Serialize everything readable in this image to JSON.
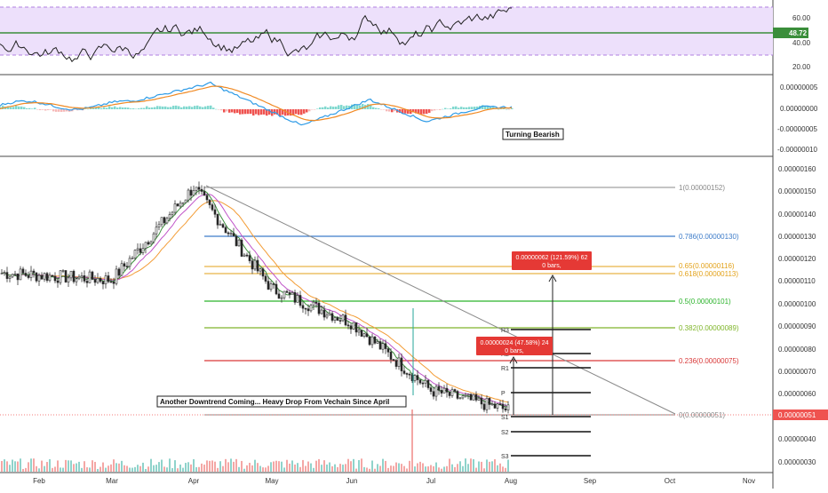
{
  "colors": {
    "up": "#26a69a",
    "down": "#ef5350",
    "rsi_band": "#ede0fb",
    "rsi_line": "#222222",
    "rsi_level": "#3a8e3a",
    "macd_line": "#2e9be6",
    "signal_line": "#f08a24",
    "trendline": "#888888",
    "ma_fast": "#3c8f3c",
    "ma_mid": "#c054c9",
    "ma_slow": "#f39c35"
  },
  "x_axis": {
    "months": [
      "Feb",
      "Mar",
      "Apr",
      "May",
      "Jun",
      "Jul",
      "Aug",
      "Sep",
      "Oct",
      "Nov"
    ]
  },
  "rsi_panel": {
    "ticks": [
      "60.00",
      "40.00",
      "20.00"
    ],
    "level_label": "48.72"
  },
  "macd_panel": {
    "ticks": [
      "0.00000005",
      "0.00000000",
      "-0.00000005",
      "-0.00000010"
    ],
    "annotation": "Turning Bearish"
  },
  "price_panel": {
    "ticks": [
      "0.00000160",
      "0.00000150",
      "0.00000140",
      "0.00000130",
      "0.00000120",
      "0.00000110",
      "0.00000100",
      "0.00000090",
      "0.00000080",
      "0.00000070",
      "0.00000060",
      "0.00000050",
      "0.00000040",
      "0.00000030"
    ],
    "last_price_label": "0.00000051",
    "annotation": "Another Downtrend Coming... Heavy Drop From Vechain Since April",
    "fib_levels": [
      {
        "label": "1(0.00000152)",
        "value": 1.52e-06,
        "color": "#888888"
      },
      {
        "label": "0.786(0.00000130)",
        "value": 1.3e-06,
        "color": "#3d7cc9"
      },
      {
        "label": "0.65(0.00000116)",
        "value": 1.16e-06,
        "color": "#e3a21a"
      },
      {
        "label": "0.618(0.00000113)",
        "value": 1.13e-06,
        "color": "#e3a21a"
      },
      {
        "label": "0.5(0.00000101)",
        "value": 1.01e-06,
        "color": "#2bb32b"
      },
      {
        "label": "0.382(0.00000089)",
        "value": 8.9e-07,
        "color": "#7fb52a"
      },
      {
        "label": "0.236(0.00000075)",
        "value": 7.5e-07,
        "color": "#d93838"
      },
      {
        "label": "0(0.00000051)",
        "value": 5.1e-07,
        "color": "#888888"
      }
    ],
    "pivots": [
      "R3",
      "R2",
      "R1",
      "P",
      "S1",
      "S2",
      "S3"
    ],
    "measure_big": {
      "line1": "0.00000062 (121.59%) 62",
      "line2": "0 bars,"
    },
    "measure_small": {
      "line1": "0.00000024 (47.58%) 24",
      "line2": "0 bars,"
    }
  },
  "chart_data": {
    "type": "line",
    "title": "",
    "xlabel": "",
    "ylabel": "",
    "x": [
      "Feb",
      "Mar",
      "Apr",
      "May",
      "Jun",
      "Jul",
      "Aug"
    ],
    "series": [
      {
        "values": [
          1.13e-06,
          1.11e-06,
          1.52e-06,
          1.07e-06,
          9.2e-07,
          6.2e-07,
          5.3e-07
        ]
      }
    ],
    "ylim": [
      2.5e-07,
      1.65e-06
    ]
  }
}
